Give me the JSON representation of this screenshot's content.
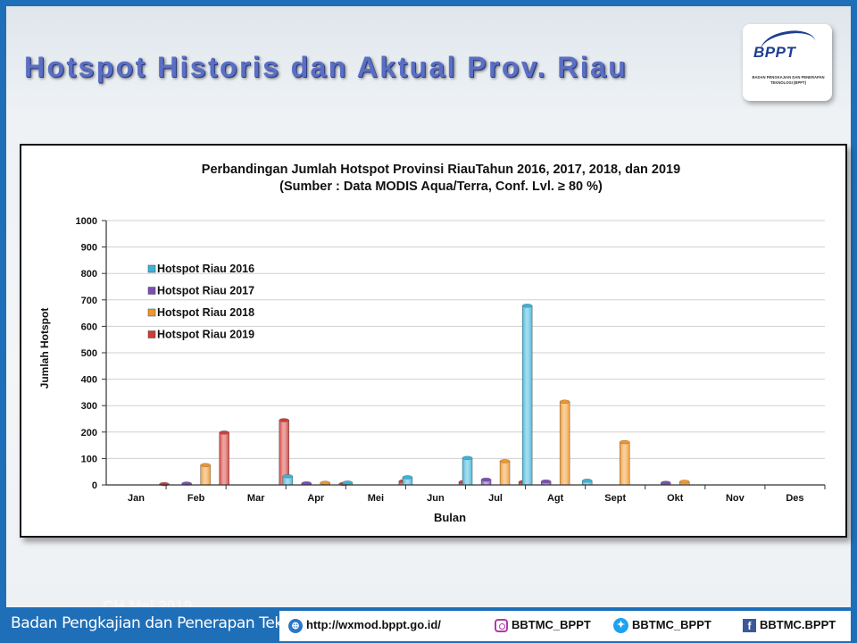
{
  "slide": {
    "title": "Hotspot Historis dan Aktual Prov. Riau",
    "watermark": "CH Mei 2019"
  },
  "logo": {
    "mark": "BPPT",
    "subtitle": "BADAN PENGKAJIAN DAN PENERAPAN TEKNOLOGI (BPPT)"
  },
  "footer": {
    "org": "Badan Pengkajian dan Penerapan Teknologi",
    "website": "http://wxmod.bppt.go.id/",
    "instagram": "BBTMC_BPPT",
    "twitter": "BBTMC_BPPT",
    "facebook": "BBTMC.BPPT",
    "icons": [
      "globe-icon",
      "instagram-icon",
      "twitter-icon",
      "facebook-icon"
    ]
  },
  "chart_data": {
    "type": "bar",
    "title": "Perbandingan Jumlah Hotspot Provinsi RiauTahun 2016, 2017, 2018, dan 2019",
    "subtitle": "(Sumber : Data MODIS Aqua/Terra, Conf. Lvl. ≥ 80 %)",
    "xlabel": "Bulan",
    "ylabel": "Jumlah Hotspot",
    "ylim": [
      0,
      1000
    ],
    "yticks": [
      0,
      100,
      200,
      300,
      400,
      500,
      600,
      700,
      800,
      900,
      1000
    ],
    "grid": true,
    "legend_position": "top-left",
    "categories": [
      "Jan",
      "Feb",
      "Mar",
      "Apr",
      "Mei",
      "Jun",
      "Jul",
      "Agt",
      "Sept",
      "Okt",
      "Nov",
      "Des"
    ],
    "series": [
      {
        "name": "Hotspot Riau 2016",
        "color": "#3bb3d9",
        "values": [
          0,
          0,
          0,
          33,
          9,
          29,
          102,
          678,
          16,
          0,
          0,
          0
        ]
      },
      {
        "name": "Hotspot Riau 2017",
        "color": "#7b4fb5",
        "values": [
          0,
          5,
          0,
          6,
          0,
          0,
          20,
          13,
          0,
          8,
          0,
          0
        ]
      },
      {
        "name": "Hotspot Riau 2018",
        "color": "#f0962a",
        "values": [
          0,
          75,
          0,
          8,
          0,
          0,
          90,
          315,
          162,
          12,
          0,
          0
        ]
      },
      {
        "name": "Hotspot Riau 2019",
        "color": "#d23b36",
        "values": [
          3,
          198,
          245,
          4,
          14,
          11,
          11,
          0,
          0,
          0,
          0,
          0
        ]
      }
    ]
  }
}
